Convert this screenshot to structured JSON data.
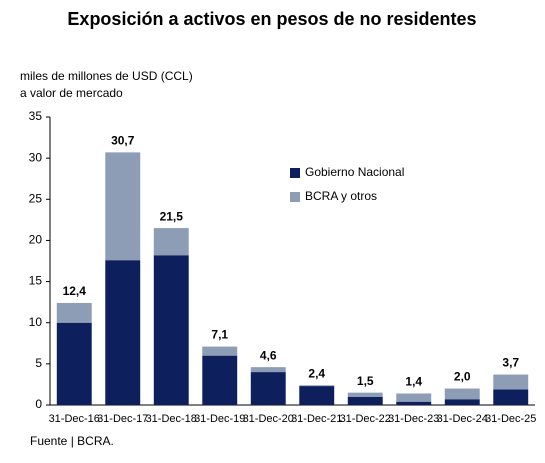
{
  "chart_data": {
    "type": "stacked_bar",
    "title": "Exposición a activos en pesos de no residentes",
    "y_label_lines": [
      "miles de millones de USD (CCL)",
      "a valor de mercado"
    ],
    "categories": [
      "31-Dec-16",
      "31-Dec-17",
      "31-Dec-18",
      "31-Dec-19",
      "31-Dec-20",
      "31-Dec-21",
      "31-Dec-22",
      "31-Dec-23",
      "31-Dec-24",
      "31-Dec-25"
    ],
    "series": [
      {
        "name": "Gobierno Nacional",
        "color": "#0d1f5c",
        "values": [
          10.0,
          17.6,
          18.2,
          6.0,
          4.0,
          2.3,
          1.0,
          0.4,
          0.7,
          1.9
        ]
      },
      {
        "name": "BCRA y otros",
        "color": "#8c9db5",
        "values": [
          2.4,
          13.1,
          3.3,
          1.1,
          0.6,
          0.1,
          0.5,
          1.0,
          1.3,
          1.8
        ]
      }
    ],
    "totals": [
      12.4,
      30.7,
      21.5,
      7.1,
      4.6,
      2.4,
      1.5,
      1.4,
      2.0,
      3.7
    ],
    "total_labels": [
      "12,4",
      "30,7",
      "21,5",
      "7,1",
      "4,6",
      "2,4",
      "1,5",
      "1,4",
      "2,0",
      "3,7"
    ],
    "ylim": [
      0,
      35
    ],
    "yticks": [
      0,
      5,
      10,
      15,
      20,
      25,
      30,
      35
    ],
    "grid": false,
    "source": "Fuente | BCRA."
  }
}
